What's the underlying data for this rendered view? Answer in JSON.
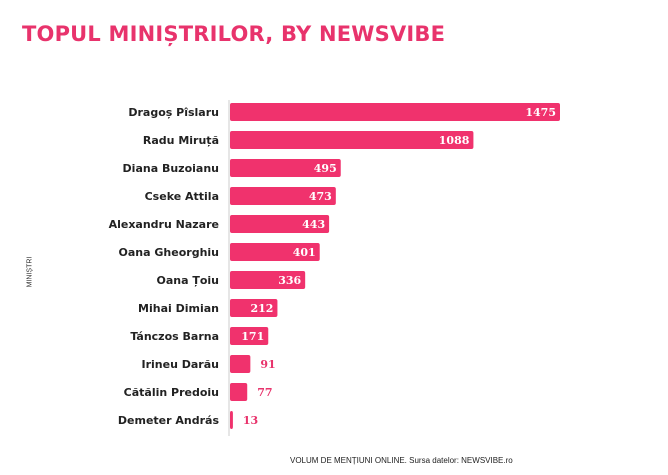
{
  "header": {
    "title": "TOPUL MINIȘTRILOR, BY NEWSVIBE"
  },
  "footer": {
    "text": "VOLUM DE MENȚIUNI ONLINE. Sursa datelor: NEWSVIBE.ro"
  },
  "colors": {
    "bar": "#f0326d",
    "title": "#e8336c"
  },
  "chart_data": {
    "type": "bar",
    "orientation": "horizontal",
    "title": "TOPUL MINIȘTRILOR, BY NEWSVIBE",
    "ylabel": "MINIȘTRI",
    "xlabel": "",
    "categories": [
      "Dragoș Pîslaru",
      "Radu Miruță",
      "Diana Buzoianu",
      "Cseke Attila",
      "Alexandru Nazare",
      "Oana Gheorghiu",
      "Oana Țoiu",
      "Mihai Dimian",
      "Tánczos Barna",
      "Irineu Darău",
      "Cătălin Predoiu",
      "Demeter András"
    ],
    "values": [
      1475,
      1088,
      495,
      473,
      443,
      401,
      336,
      212,
      171,
      91,
      77,
      13
    ],
    "xlim": [
      0,
      1475
    ],
    "grid": false,
    "legend": "none"
  }
}
